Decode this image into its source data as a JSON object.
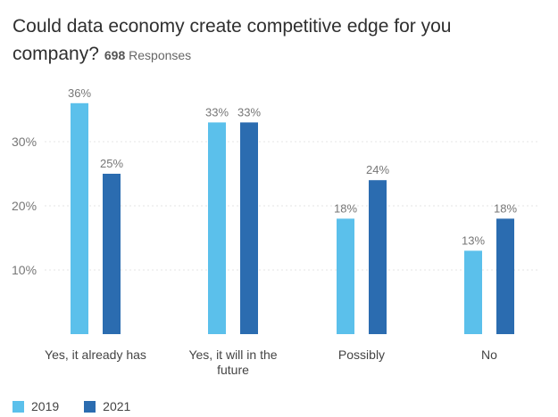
{
  "chart_data": {
    "type": "bar",
    "title_line1": "Could data economy create competitive edge for you",
    "title_line2": "company?",
    "responses_count": "698",
    "responses_label": "Responses",
    "categories": [
      {
        "lines": [
          "Yes, it already has"
        ]
      },
      {
        "lines": [
          "Yes, it will in the",
          "future"
        ]
      },
      {
        "lines": [
          "Possibly"
        ]
      },
      {
        "lines": [
          "No"
        ]
      }
    ],
    "series": [
      {
        "name": "2019",
        "color": "#5bc0eb",
        "values": [
          36,
          33,
          18,
          13
        ]
      },
      {
        "name": "2021",
        "color": "#2b6cb0",
        "values": [
          25,
          33,
          24,
          18
        ]
      }
    ],
    "yticks": [
      10,
      20,
      30
    ],
    "ytick_labels": [
      "10%",
      "20%",
      "30%"
    ],
    "value_suffix": "%",
    "ylim": [
      0,
      36
    ],
    "grid": true,
    "legend_position": "bottom-left"
  }
}
